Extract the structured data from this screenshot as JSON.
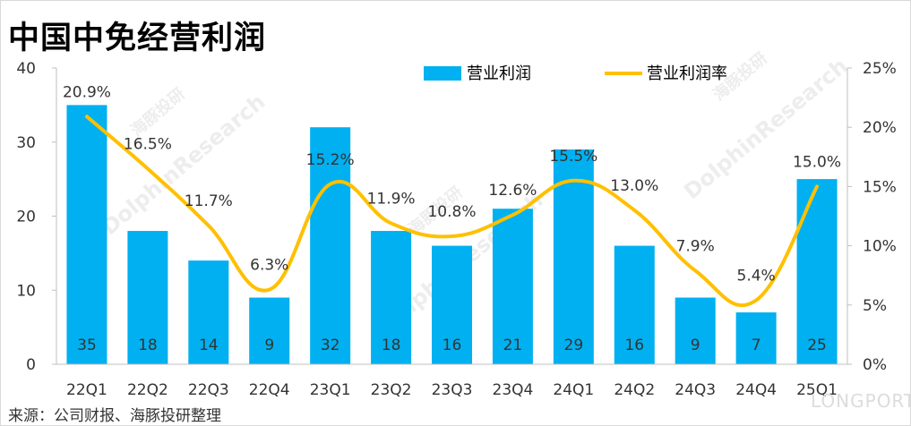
{
  "title": "中国中免经营利润",
  "source": "来源：公司财报、海豚投研整理",
  "watermark": {
    "brand_en": "DolphinResearch",
    "brand_cn": "海豚投研",
    "logo": "LONGPORT"
  },
  "colors": {
    "bar": "#00b0f0",
    "line": "#ffc000",
    "axis": "#bfbfbf",
    "text": "#333333"
  },
  "chart_data": {
    "type": "bar",
    "title": "中国中免经营利润",
    "categories": [
      "22Q1",
      "22Q2",
      "22Q3",
      "22Q4",
      "23Q1",
      "23Q2",
      "23Q3",
      "23Q4",
      "24Q1",
      "24Q2",
      "24Q3",
      "24Q4",
      "25Q1"
    ],
    "series": [
      {
        "name": "营业利润",
        "type": "bar",
        "axis": "left",
        "values": [
          35,
          18,
          14,
          9,
          32,
          18,
          16,
          21,
          29,
          16,
          9,
          7,
          25
        ],
        "labels": [
          "35",
          "18",
          "14",
          "9",
          "32",
          "18",
          "16",
          "21",
          "29",
          "16",
          "9",
          "7",
          "25"
        ]
      },
      {
        "name": "营业利润率",
        "type": "line",
        "axis": "right",
        "smooth": true,
        "values": [
          20.9,
          16.5,
          11.7,
          6.3,
          15.2,
          11.9,
          10.8,
          12.6,
          15.5,
          13.0,
          7.9,
          5.4,
          15.0
        ],
        "labels": [
          "20.9%",
          "16.5%",
          "11.7%",
          "6.3%",
          "15.2%",
          "11.9%",
          "10.8%",
          "12.6%",
          "15.5%",
          "13.0%",
          "7.9%",
          "5.4%",
          "15.0%"
        ]
      }
    ],
    "y_left": {
      "min": 0,
      "max": 40,
      "ticks": [
        "0",
        "10",
        "20",
        "30",
        "40"
      ]
    },
    "y_right": {
      "min": 0,
      "max": 25,
      "ticks": [
        "0%",
        "5%",
        "10%",
        "15%",
        "20%",
        "25%"
      ]
    },
    "grid": false,
    "legend": "top-right"
  }
}
